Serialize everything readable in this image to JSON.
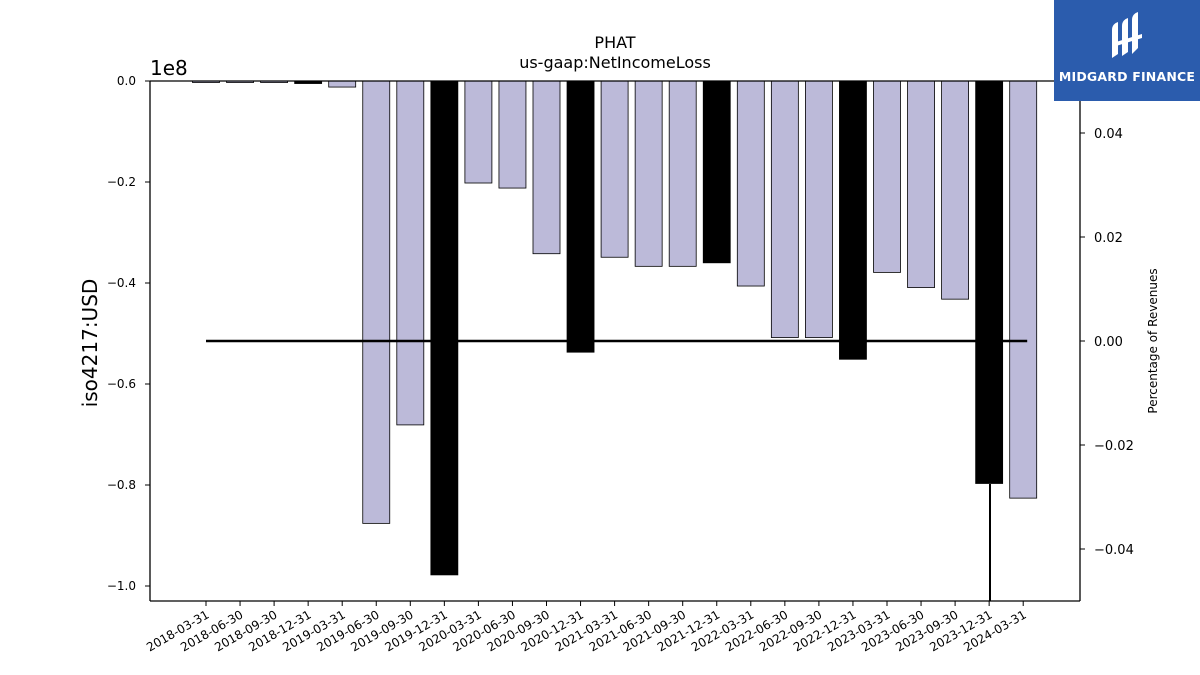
{
  "chart_data": {
    "type": "bar",
    "title": "PHAT",
    "subtitle": "us-gaap:NetIncomeLoss",
    "ylabel": "iso4217:USD",
    "y_offset_label": "1e8",
    "y2label": "Percentage of Revenues",
    "ylim": [
      -1.03,
      0.0
    ],
    "y2lim": [
      -0.05,
      0.05
    ],
    "yticks": [
      "0.0",
      "−0.2",
      "−0.4",
      "−0.6",
      "−0.8",
      "−1.0"
    ],
    "y2ticks": [
      "0.04",
      "0.02",
      "0.00",
      "−0.02",
      "−0.04"
    ],
    "categories": [
      "2018-03-31",
      "2018-06-30",
      "2018-09-30",
      "2018-12-31",
      "2019-03-31",
      "2019-06-30",
      "2019-09-30",
      "2019-12-31",
      "2020-03-31",
      "2020-06-30",
      "2020-09-30",
      "2020-12-31",
      "2021-03-31",
      "2021-06-30",
      "2021-09-30",
      "2021-12-31",
      "2022-03-31",
      "2022-06-30",
      "2022-09-30",
      "2022-12-31",
      "2023-03-31",
      "2023-06-30",
      "2023-09-30",
      "2023-12-31",
      "2024-03-31"
    ],
    "values": [
      -0.003,
      -0.003,
      -0.003,
      -0.005,
      -0.012,
      -0.876,
      -0.681,
      -0.978,
      -0.202,
      -0.212,
      -0.342,
      -0.537,
      -0.349,
      -0.367,
      -0.367,
      -0.36,
      -0.406,
      -0.508,
      -0.508,
      -0.551,
      -0.379,
      -0.409,
      -0.432,
      -0.797,
      -0.826
    ],
    "annual": [
      false,
      false,
      false,
      true,
      false,
      false,
      false,
      true,
      false,
      false,
      false,
      true,
      false,
      false,
      false,
      true,
      false,
      false,
      false,
      true,
      false,
      false,
      false,
      true,
      false
    ],
    "colors": {
      "quarterly": "#bcbad9",
      "annual": "#000000",
      "edge": "#000000"
    },
    "ratio_line_value": 0.0,
    "grid": false
  },
  "logo": {
    "text": "MIDGARD FINANCE",
    "icon": "midgard-logo-icon",
    "background": "#2b5cad"
  }
}
